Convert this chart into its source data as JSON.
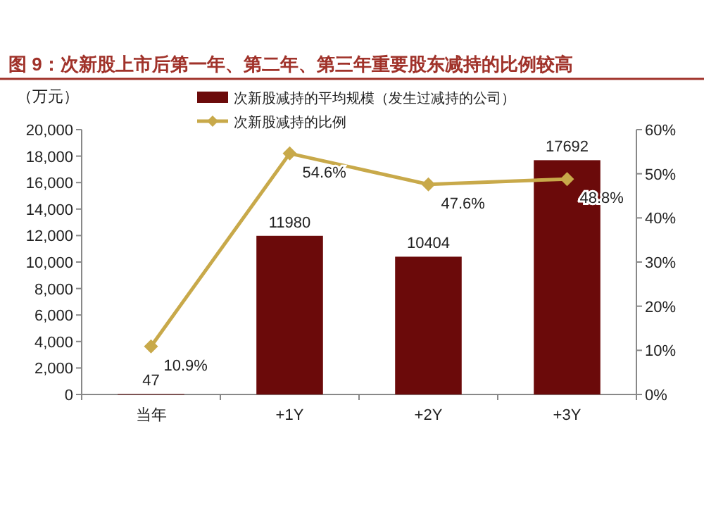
{
  "chart_data": {
    "type": "bar",
    "title": "图 9：次新股上市后第一年、第二年、第三年重要股东减持的比例较高",
    "ylabel": "（万元）",
    "categories": [
      "当年",
      "+1Y",
      "+2Y",
      "+3Y"
    ],
    "series": [
      {
        "name": "次新股减持的平均规模（发生过减持的公司）",
        "color": "#6b0a0a",
        "values": [
          47,
          11980,
          10404,
          17692
        ],
        "value_labels": [
          "47",
          "11980",
          "10404",
          "17692"
        ]
      },
      {
        "name": "次新股减持的比例",
        "type": "line",
        "axis": "y2",
        "color": "#c8a94a",
        "values": [
          10.9,
          54.6,
          47.6,
          48.8
        ],
        "value_labels": [
          "10.9%",
          "54.6%",
          "47.6%",
          "48.8%"
        ]
      }
    ],
    "ylim": [
      0,
      20000
    ],
    "yticks": [
      {
        "value": 0,
        "label": "0"
      },
      {
        "value": 2000,
        "label": "2,000"
      },
      {
        "value": 4000,
        "label": "4,000"
      },
      {
        "value": 6000,
        "label": "6,000"
      },
      {
        "value": 8000,
        "label": "8,000"
      },
      {
        "value": 10000,
        "label": "10,000"
      },
      {
        "value": 12000,
        "label": "12,000"
      },
      {
        "value": 14000,
        "label": "14,000"
      },
      {
        "value": 16000,
        "label": "16,000"
      },
      {
        "value": 18000,
        "label": "18,000"
      },
      {
        "value": 20000,
        "label": "20,000"
      }
    ],
    "y2lim": [
      0,
      60
    ],
    "y2ticks": [
      {
        "value": 0,
        "label": "0%"
      },
      {
        "value": 10,
        "label": "10%"
      },
      {
        "value": 20,
        "label": "20%"
      },
      {
        "value": 30,
        "label": "30%"
      },
      {
        "value": 40,
        "label": "40%"
      },
      {
        "value": 50,
        "label": "50%"
      },
      {
        "value": 60,
        "label": "60%"
      }
    ],
    "marker": "diamond",
    "legend": "top",
    "grid": false
  }
}
